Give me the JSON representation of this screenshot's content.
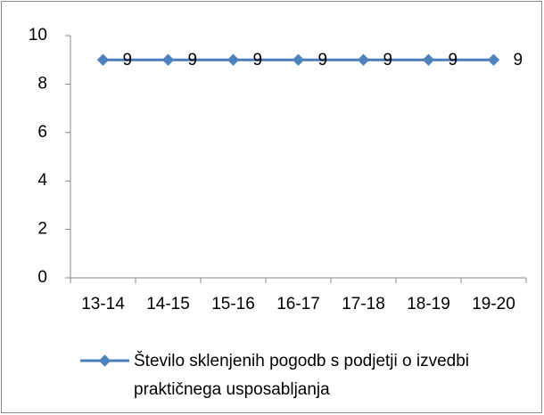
{
  "chart_data": {
    "type": "line",
    "categories": [
      "13-14",
      "14-15",
      "15-16",
      "16-17",
      "17-18",
      "18-19",
      "19-20"
    ],
    "series": [
      {
        "name": "Število sklenjenih pogodb s podjetji o izvedbi praktičnega usposabljanja",
        "color": "#4a7ebb",
        "values": [
          9,
          9,
          9,
          9,
          9,
          9,
          9
        ]
      }
    ],
    "ylim": [
      0,
      10
    ],
    "yticks": [
      0,
      2,
      4,
      6,
      8,
      10
    ],
    "grid": false,
    "legend": "bottom",
    "data_labels": true
  }
}
